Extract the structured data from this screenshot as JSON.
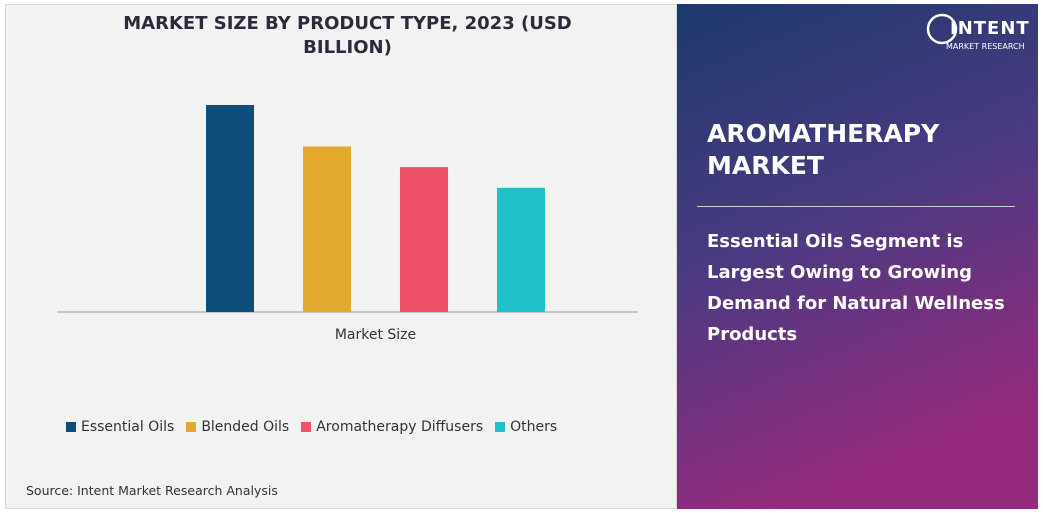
{
  "chart_data": {
    "type": "bar",
    "title": "MARKET SIZE BY PRODUCT TYPE, 2023 (USD BILLION)",
    "categories": [
      "Market Size"
    ],
    "series": [
      {
        "name": "Essential Oils",
        "color": "#0d4f7a",
        "values": [
          10
        ]
      },
      {
        "name": "Blended Oils",
        "color": "#e3a82e",
        "values": [
          8
        ]
      },
      {
        "name": "Aromatherapy Diffusers",
        "color": "#f0506a",
        "values": [
          7
        ]
      },
      {
        "name": "Others",
        "color": "#1fc0c8",
        "values": [
          6
        ]
      }
    ],
    "ylim": [
      0,
      10
    ]
  },
  "source": "Source: Intent Market Research Analysis",
  "panel": {
    "heading": "AROMATHERAPY MARKET",
    "text": "Essential Oils Segment is Largest Owing to Growing Demand for Natural Wellness Products"
  },
  "logo": {
    "name": "INTENT",
    "tagline": "MARKET RESEARCH"
  }
}
